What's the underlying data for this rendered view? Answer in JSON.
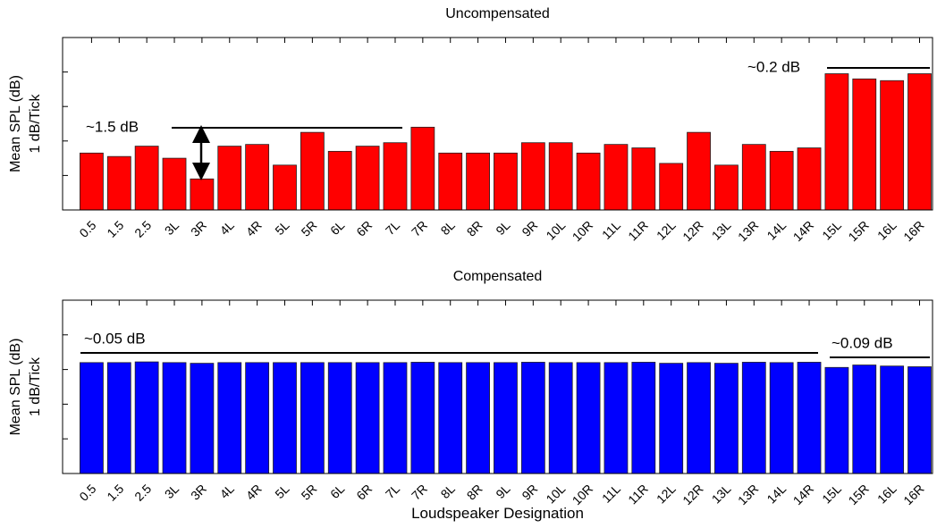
{
  "chart_data": [
    {
      "type": "bar",
      "title": "Uncompensated",
      "y_label": [
        "Mean SPL (dB)",
        "1 dB/Tick"
      ],
      "color": "#ff0000",
      "categories": [
        "0.5",
        "1.5",
        "2.5",
        "3L",
        "3R",
        "4L",
        "4R",
        "5L",
        "5R",
        "6L",
        "6R",
        "7L",
        "7R",
        "8L",
        "8R",
        "9L",
        "9R",
        "10L",
        "10R",
        "11L",
        "11R",
        "12L",
        "12R",
        "13L",
        "13R",
        "14L",
        "14R",
        "15L",
        "15R",
        "16L",
        "16R"
      ],
      "values": [
        1.65,
        1.55,
        1.85,
        1.5,
        0.9,
        1.85,
        1.9,
        1.3,
        2.25,
        1.7,
        1.85,
        1.95,
        2.4,
        1.65,
        1.65,
        1.65,
        1.95,
        1.95,
        1.65,
        1.9,
        1.8,
        1.35,
        2.25,
        1.3,
        1.9,
        1.7,
        1.8,
        3.95,
        3.8,
        3.75,
        3.95
      ],
      "ylim": [
        0,
        5
      ],
      "yticks": [
        0,
        1,
        2,
        3,
        4,
        5
      ],
      "annotations": [
        "~1.5 dB",
        "~0.2 dB"
      ]
    },
    {
      "type": "bar",
      "title": "Compensated",
      "y_label": [
        "Mean SPL (dB)",
        "1 dB/Tick"
      ],
      "x_label": "Loudspeaker Designation",
      "color": "#0000ff",
      "categories": [
        "0.5",
        "1.5",
        "2.5",
        "3L",
        "3R",
        "4L",
        "4R",
        "5L",
        "5R",
        "6L",
        "6R",
        "7L",
        "7R",
        "8L",
        "8R",
        "9L",
        "9R",
        "10L",
        "10R",
        "11L",
        "11R",
        "12L",
        "12R",
        "13L",
        "13R",
        "14L",
        "14R",
        "15L",
        "15R",
        "16L",
        "16R"
      ],
      "values": [
        3.2,
        3.2,
        3.22,
        3.2,
        3.18,
        3.2,
        3.2,
        3.2,
        3.2,
        3.2,
        3.2,
        3.2,
        3.21,
        3.2,
        3.2,
        3.2,
        3.21,
        3.2,
        3.2,
        3.2,
        3.21,
        3.18,
        3.2,
        3.18,
        3.21,
        3.2,
        3.21,
        3.06,
        3.13,
        3.1,
        3.08
      ],
      "ylim": [
        0,
        5
      ],
      "yticks": [
        0,
        1,
        2,
        3,
        4,
        5
      ],
      "annotations": [
        "~0.05 dB",
        "~0.09 dB"
      ]
    }
  ]
}
